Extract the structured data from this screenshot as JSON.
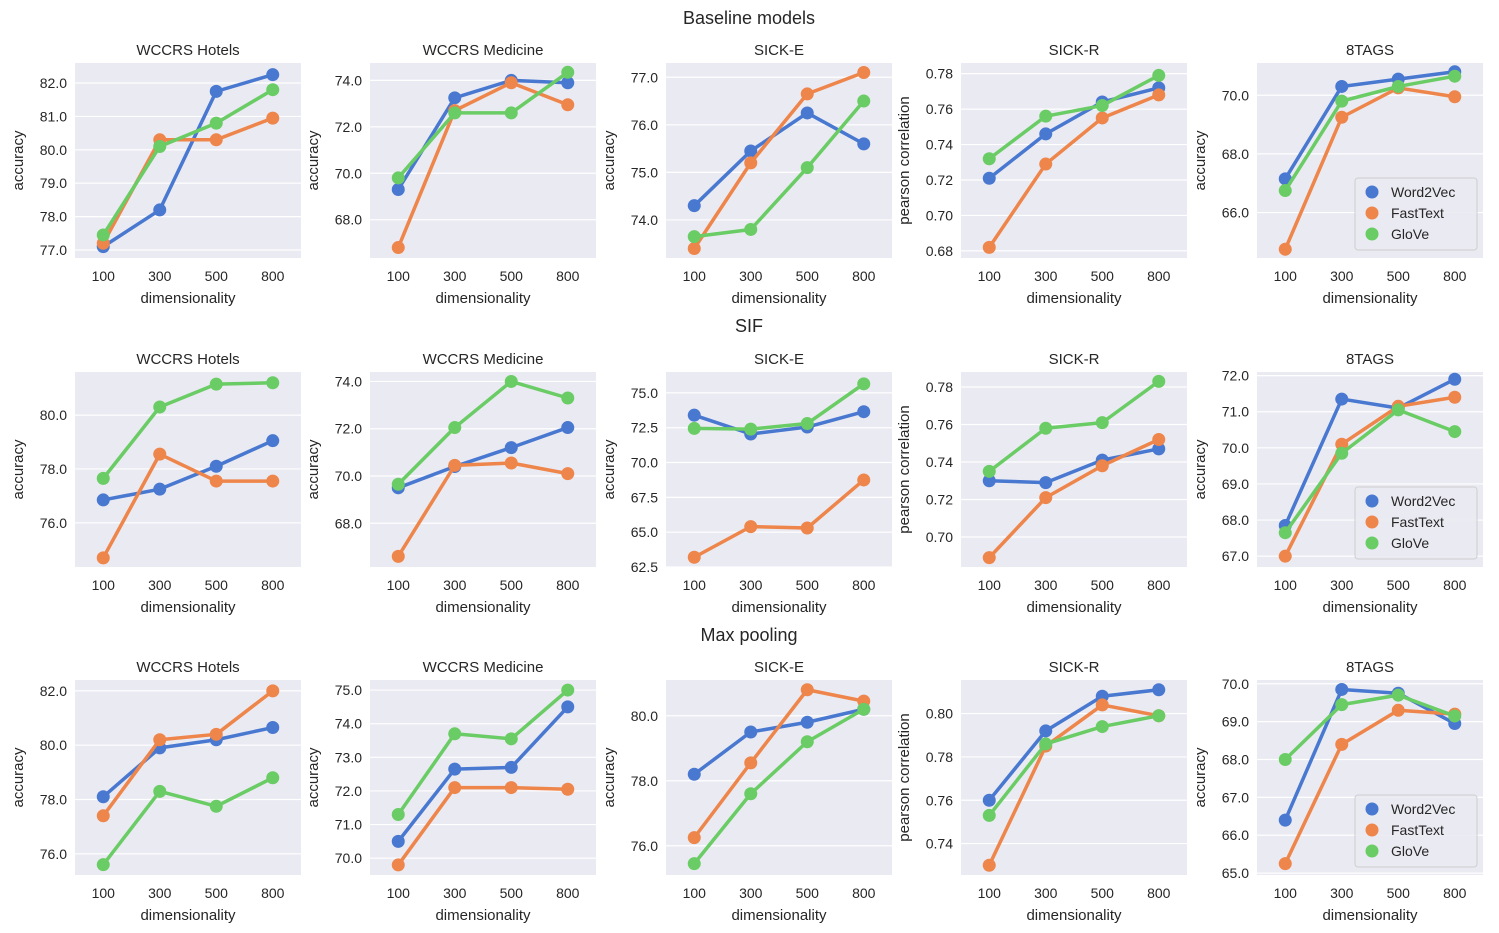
{
  "chart_data": {
    "type": "line",
    "x": [
      "100",
      "300",
      "500",
      "800"
    ],
    "xlabel": "dimensionality",
    "series_names": [
      "Word2Vec",
      "FastText",
      "GloVe"
    ],
    "colors": {
      "Word2Vec": "#4878d0",
      "FastText": "#ee854a",
      "GloVe": "#6acc64"
    },
    "legend": {
      "placement": "lower-right",
      "column": 4,
      "entries": [
        "Word2Vec",
        "FastText",
        "GloVe"
      ]
    },
    "grid": true,
    "rows": [
      {
        "title": "Baseline models",
        "panels": [
          {
            "title": "WCCRS Hotels",
            "ylabel": "accuracy",
            "ylim": [
              76.76,
              82.6
            ],
            "yticks": [
              "77.0",
              "78.0",
              "79.0",
              "80.0",
              "81.0",
              "82.0"
            ],
            "ytick_values": [
              77,
              78,
              79,
              80,
              81,
              82
            ],
            "series": [
              {
                "name": "Word2Vec",
                "values": [
                  77.1,
                  78.2,
                  81.75,
                  82.25
                ]
              },
              {
                "name": "FastText",
                "values": [
                  77.2,
                  80.3,
                  80.3,
                  80.95
                ]
              },
              {
                "name": "GloVe",
                "values": [
                  77.45,
                  80.1,
                  80.8,
                  81.8
                ]
              }
            ]
          },
          {
            "title": "WCCRS Medicine",
            "ylabel": "accuracy",
            "ylim": [
              66.35,
              74.75
            ],
            "yticks": [
              "68.0",
              "70.0",
              "72.0",
              "74.0"
            ],
            "ytick_values": [
              68,
              70,
              72,
              74
            ],
            "series": [
              {
                "name": "Word2Vec",
                "values": [
                  69.3,
                  73.25,
                  74.0,
                  73.9
                ]
              },
              {
                "name": "FastText",
                "values": [
                  66.8,
                  72.7,
                  73.9,
                  72.95
                ]
              },
              {
                "name": "GloVe",
                "values": [
                  69.8,
                  72.6,
                  72.6,
                  74.35
                ]
              }
            ]
          },
          {
            "title": "SICK-E",
            "ylabel": "accuracy",
            "ylim": [
              73.2,
              77.3
            ],
            "yticks": [
              "74.0",
              "75.0",
              "76.0",
              "77.0"
            ],
            "ytick_values": [
              74,
              75,
              76,
              77
            ],
            "series": [
              {
                "name": "Word2Vec",
                "values": [
                  74.3,
                  75.45,
                  76.25,
                  75.6
                ]
              },
              {
                "name": "FastText",
                "values": [
                  73.4,
                  75.2,
                  76.65,
                  77.1
                ]
              },
              {
                "name": "GloVe",
                "values": [
                  73.65,
                  73.8,
                  75.1,
                  76.5
                ]
              }
            ]
          },
          {
            "title": "SICK-R",
            "ylabel": "pearson correlation",
            "ylim": [
              0.676,
              0.786
            ],
            "yticks": [
              "0.68",
              "0.70",
              "0.72",
              "0.74",
              "0.76",
              "0.78"
            ],
            "ytick_values": [
              0.68,
              0.7,
              0.72,
              0.74,
              0.76,
              0.78
            ],
            "series": [
              {
                "name": "Word2Vec",
                "values": [
                  0.721,
                  0.746,
                  0.764,
                  0.772
                ]
              },
              {
                "name": "FastText",
                "values": [
                  0.682,
                  0.729,
                  0.755,
                  0.768
                ]
              },
              {
                "name": "GloVe",
                "values": [
                  0.732,
                  0.756,
                  0.762,
                  0.779
                ]
              }
            ]
          },
          {
            "title": "8TAGS",
            "ylabel": "accuracy",
            "ylim": [
              64.45,
              71.1
            ],
            "yticks": [
              "66.0",
              "68.0",
              "70.0"
            ],
            "ytick_values": [
              66,
              68,
              70
            ],
            "legend": true,
            "series": [
              {
                "name": "Word2Vec",
                "values": [
                  67.15,
                  70.3,
                  70.55,
                  70.8
                ]
              },
              {
                "name": "FastText",
                "values": [
                  64.75,
                  69.25,
                  70.25,
                  69.95
                ]
              },
              {
                "name": "GloVe",
                "values": [
                  66.75,
                  69.8,
                  70.3,
                  70.65
                ]
              }
            ]
          }
        ]
      },
      {
        "title": "SIF",
        "panels": [
          {
            "title": "WCCRS Hotels",
            "ylabel": "accuracy",
            "ylim": [
              74.36,
              81.6
            ],
            "yticks": [
              "76.0",
              "78.0",
              "80.0"
            ],
            "ytick_values": [
              76,
              78,
              80
            ],
            "series": [
              {
                "name": "Word2Vec",
                "values": [
                  76.85,
                  77.25,
                  78.1,
                  79.05
                ]
              },
              {
                "name": "FastText",
                "values": [
                  74.7,
                  78.55,
                  77.55,
                  77.55
                ]
              },
              {
                "name": "GloVe",
                "values": [
                  77.65,
                  80.3,
                  81.15,
                  81.2
                ]
              }
            ]
          },
          {
            "title": "WCCRS Medicine",
            "ylabel": "accuracy",
            "ylim": [
              66.15,
              74.4
            ],
            "yticks": [
              "68.0",
              "70.0",
              "72.0",
              "74.0"
            ],
            "ytick_values": [
              68,
              70,
              72,
              74
            ],
            "series": [
              {
                "name": "Word2Vec",
                "values": [
                  69.5,
                  70.4,
                  71.2,
                  72.05
                ]
              },
              {
                "name": "FastText",
                "values": [
                  66.6,
                  70.45,
                  70.55,
                  70.1
                ]
              },
              {
                "name": "GloVe",
                "values": [
                  69.65,
                  72.05,
                  74.0,
                  73.3
                ]
              }
            ]
          },
          {
            "title": "SICK-E",
            "ylabel": "accuracy",
            "ylim": [
              62.5,
              76.5
            ],
            "yticks": [
              "62.5",
              "65.0",
              "67.5",
              "70.0",
              "72.5",
              "75.0"
            ],
            "ytick_values": [
              62.5,
              65,
              67.5,
              70,
              72.5,
              75
            ],
            "series": [
              {
                "name": "Word2Vec",
                "values": [
                  73.4,
                  72.05,
                  72.55,
                  73.65
                ]
              },
              {
                "name": "FastText",
                "values": [
                  63.2,
                  65.4,
                  65.3,
                  68.75
                ]
              },
              {
                "name": "GloVe",
                "values": [
                  72.45,
                  72.4,
                  72.8,
                  75.65
                ]
              }
            ]
          },
          {
            "title": "SICK-R",
            "ylabel": "pearson correlation",
            "ylim": [
              0.684,
              0.788
            ],
            "yticks": [
              "0.70",
              "0.72",
              "0.74",
              "0.76",
              "0.78"
            ],
            "ytick_values": [
              0.7,
              0.72,
              0.74,
              0.76,
              0.78
            ],
            "series": [
              {
                "name": "Word2Vec",
                "values": [
                  0.73,
                  0.729,
                  0.741,
                  0.747
                ]
              },
              {
                "name": "FastText",
                "values": [
                  0.689,
                  0.721,
                  0.738,
                  0.752
                ]
              },
              {
                "name": "GloVe",
                "values": [
                  0.735,
                  0.758,
                  0.761,
                  0.783
                ]
              }
            ]
          },
          {
            "title": "8TAGS",
            "ylabel": "accuracy",
            "ylim": [
              66.7,
              72.1
            ],
            "yticks": [
              "67.0",
              "68.0",
              "69.0",
              "70.0",
              "71.0",
              "72.0"
            ],
            "ytick_values": [
              67,
              68,
              69,
              70,
              71,
              72
            ],
            "legend": true,
            "series": [
              {
                "name": "Word2Vec",
                "values": [
                  67.85,
                  71.35,
                  71.1,
                  71.9
                ]
              },
              {
                "name": "FastText",
                "values": [
                  67.0,
                  70.1,
                  71.15,
                  71.4
                ]
              },
              {
                "name": "GloVe",
                "values": [
                  67.65,
                  69.85,
                  71.05,
                  70.45
                ]
              }
            ]
          }
        ]
      },
      {
        "title": "Max pooling",
        "panels": [
          {
            "title": "WCCRS Hotels",
            "ylabel": "accuracy",
            "ylim": [
              75.22,
              82.4
            ],
            "yticks": [
              "76.0",
              "78.0",
              "80.0",
              "82.0"
            ],
            "ytick_values": [
              76,
              78,
              80,
              82
            ],
            "series": [
              {
                "name": "Word2Vec",
                "values": [
                  78.1,
                  79.9,
                  80.2,
                  80.65
                ]
              },
              {
                "name": "FastText",
                "values": [
                  77.4,
                  80.2,
                  80.4,
                  82.0
                ]
              },
              {
                "name": "GloVe",
                "values": [
                  75.6,
                  78.3,
                  77.75,
                  78.8
                ]
              }
            ]
          },
          {
            "title": "WCCRS Medicine",
            "ylabel": "accuracy",
            "ylim": [
              69.5,
              75.3
            ],
            "yticks": [
              "70.0",
              "71.0",
              "72.0",
              "73.0",
              "74.0",
              "75.0"
            ],
            "ytick_values": [
              70,
              71,
              72,
              73,
              74,
              75
            ],
            "series": [
              {
                "name": "Word2Vec",
                "values": [
                  70.5,
                  72.65,
                  72.7,
                  74.5
                ]
              },
              {
                "name": "FastText",
                "values": [
                  69.8,
                  72.1,
                  72.1,
                  72.05
                ]
              },
              {
                "name": "GloVe",
                "values": [
                  71.3,
                  73.7,
                  73.55,
                  75.0
                ]
              }
            ]
          },
          {
            "title": "SICK-E",
            "ylabel": "accuracy",
            "ylim": [
              75.1,
              81.1
            ],
            "yticks": [
              "76.0",
              "78.0",
              "80.0"
            ],
            "ytick_values": [
              76,
              78,
              80
            ],
            "series": [
              {
                "name": "Word2Vec",
                "values": [
                  78.2,
                  79.5,
                  79.8,
                  80.2
                ]
              },
              {
                "name": "FastText",
                "values": [
                  76.25,
                  78.55,
                  80.8,
                  80.45
                ]
              },
              {
                "name": "GloVe",
                "values": [
                  75.45,
                  77.6,
                  79.2,
                  80.2
                ]
              }
            ]
          },
          {
            "title": "SICK-R",
            "ylabel": "pearson correlation",
            "ylim": [
              0.7255,
              0.8155
            ],
            "yticks": [
              "0.74",
              "0.76",
              "0.78",
              "0.80"
            ],
            "ytick_values": [
              0.74,
              0.76,
              0.78,
              0.8
            ],
            "series": [
              {
                "name": "Word2Vec",
                "values": [
                  0.76,
                  0.792,
                  0.808,
                  0.811
                ]
              },
              {
                "name": "FastText",
                "values": [
                  0.73,
                  0.785,
                  0.804,
                  0.799
                ]
              },
              {
                "name": "GloVe",
                "values": [
                  0.753,
                  0.786,
                  0.794,
                  0.799
                ]
              }
            ]
          },
          {
            "title": "8TAGS",
            "ylabel": "accuracy",
            "ylim": [
              64.95,
              70.1
            ],
            "yticks": [
              "65.0",
              "66.0",
              "67.0",
              "68.0",
              "69.0",
              "70.0"
            ],
            "ytick_values": [
              65,
              66,
              67,
              68,
              69,
              70
            ],
            "legend": true,
            "series": [
              {
                "name": "Word2Vec",
                "values": [
                  66.4,
                  69.85,
                  69.75,
                  68.95
                ]
              },
              {
                "name": "FastText",
                "values": [
                  65.25,
                  68.4,
                  69.3,
                  69.2
                ]
              },
              {
                "name": "GloVe",
                "values": [
                  68.0,
                  69.45,
                  69.7,
                  69.15
                ]
              }
            ]
          }
        ]
      }
    ]
  }
}
